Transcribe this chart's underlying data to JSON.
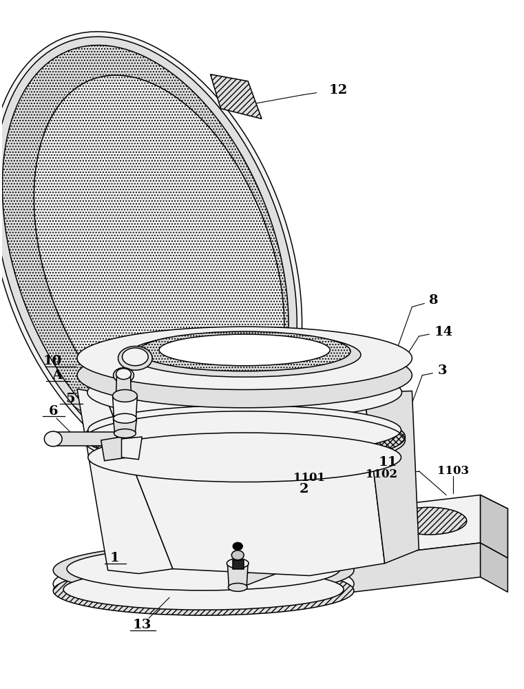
{
  "figsize": [
    7.61,
    10.0
  ],
  "dpi": 100,
  "bg_color": "#ffffff",
  "lw": 1.1,
  "lw_thin": 0.7,
  "gray_light": "#f2f2f2",
  "gray_mid": "#e0e0e0",
  "gray_dark": "#c8c8c8",
  "gray_hatch": "#d8d8d8",
  "black": "#000000",
  "white": "#ffffff"
}
